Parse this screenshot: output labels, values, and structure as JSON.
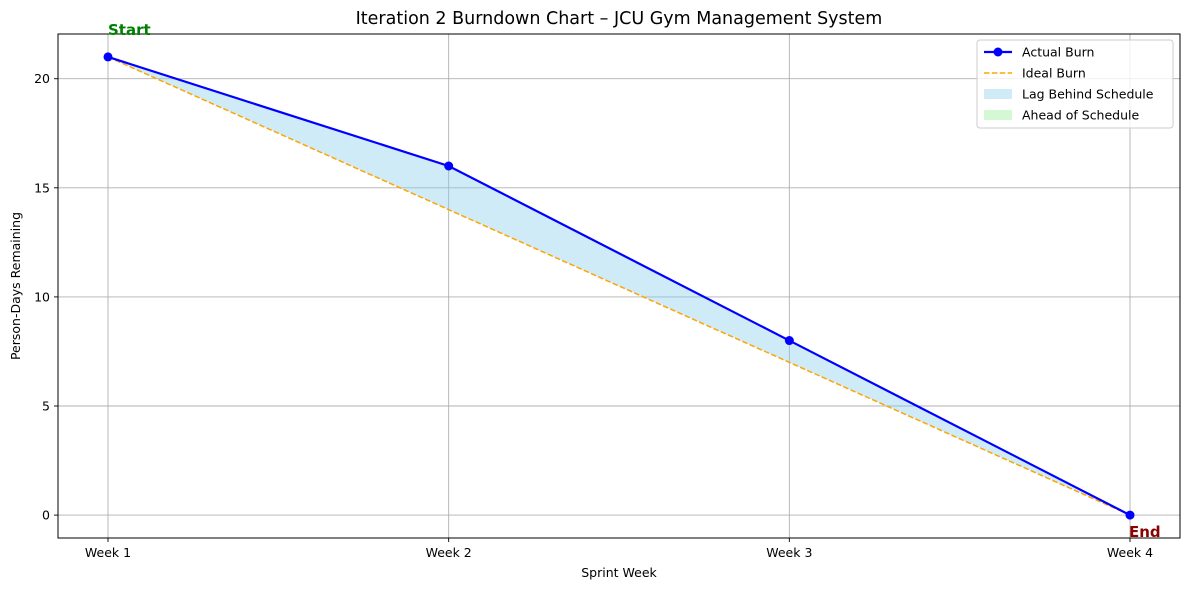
{
  "chart_data": {
    "type": "line",
    "title": "Iteration 2 Burndown Chart – JCU Gym Management System",
    "xlabel": "Sprint Week",
    "ylabel": "Person-Days Remaining",
    "categories": [
      "Week 1",
      "Week 2",
      "Week 3",
      "Week 4"
    ],
    "ylim": [
      -1.05,
      22.05
    ],
    "yticks": [
      0,
      5,
      10,
      15,
      20
    ],
    "grid": true,
    "legend_position": "top-right",
    "series": [
      {
        "name": "Actual Burn",
        "values": [
          21,
          16,
          8,
          0
        ],
        "color": "#0000ff",
        "style": "solid-with-markers"
      },
      {
        "name": "Ideal Burn",
        "values": [
          21,
          14,
          7,
          0
        ],
        "color": "#ffa500",
        "style": "dashed"
      }
    ],
    "fills": [
      {
        "name": "Lag Behind Schedule",
        "color": "#87ceeb",
        "opacity": 0.4,
        "condition": "actual > ideal"
      },
      {
        "name": "Ahead of Schedule",
        "color": "#90ee90",
        "opacity": 0.4,
        "condition": "actual < ideal"
      }
    ],
    "annotations": [
      {
        "text": "Start",
        "x": "Week 1",
        "y": 21,
        "color": "#008000"
      },
      {
        "text": "End",
        "x": "Week 4",
        "y": 0,
        "color": "#8b0000"
      }
    ]
  }
}
